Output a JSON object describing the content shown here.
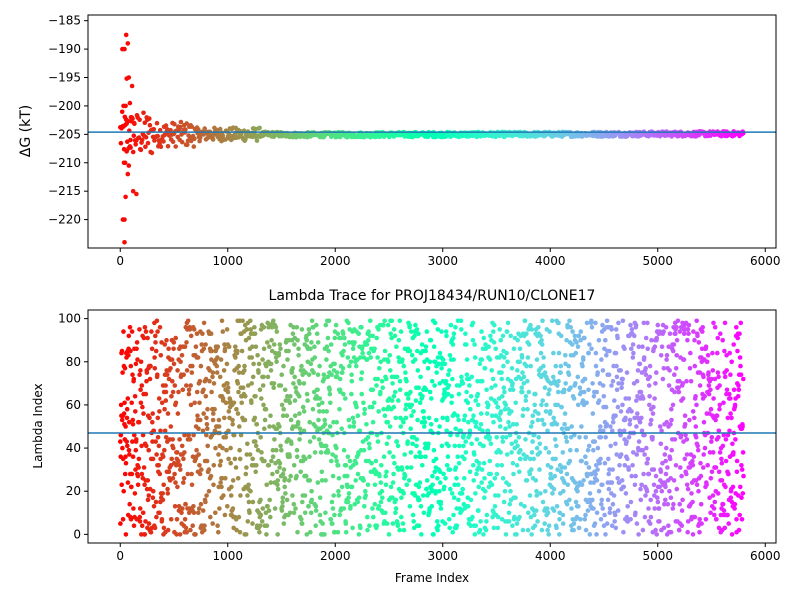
{
  "chart_data": [
    {
      "type": "scatter",
      "title": "",
      "xlabel": "",
      "ylabel": "ΔG (kT)",
      "xlim": [
        -300,
        6100
      ],
      "ylim": [
        -225,
        -184
      ],
      "xticks": [
        0,
        1000,
        2000,
        3000,
        4000,
        5000,
        6000
      ],
      "yticks": [
        -185,
        -190,
        -195,
        -200,
        -205,
        -210,
        -215,
        -220
      ],
      "xtick_labels": [
        "0",
        "1000",
        "2000",
        "3000",
        "4000",
        "5000",
        "6000"
      ],
      "ytick_labels": [
        "−185",
        "−190",
        "−195",
        "−200",
        "−205",
        "−210",
        "−215",
        "−220"
      ],
      "hline": -204.6,
      "hline_color": "#1f77b4",
      "colormap": "rainbow (red → violet with frame index)",
      "n_frames": 5800,
      "early_points": [
        {
          "x": 20,
          "y": -190
        },
        {
          "x": 40,
          "y": -190
        },
        {
          "x": 55,
          "y": -187.5
        },
        {
          "x": 70,
          "y": -189
        },
        {
          "x": 30,
          "y": -200
        },
        {
          "x": 50,
          "y": -200
        },
        {
          "x": 80,
          "y": -195
        },
        {
          "x": 60,
          "y": -195.2
        },
        {
          "x": 35,
          "y": -210
        },
        {
          "x": 45,
          "y": -210
        },
        {
          "x": 25,
          "y": -220
        },
        {
          "x": 40,
          "y": -220
        },
        {
          "x": 50,
          "y": -216
        },
        {
          "x": 40,
          "y": -224
        },
        {
          "x": 60,
          "y": -208
        },
        {
          "x": 70,
          "y": -212
        },
        {
          "x": 90,
          "y": -199.5
        },
        {
          "x": 100,
          "y": -202
        },
        {
          "x": 110,
          "y": -196.5
        },
        {
          "x": 120,
          "y": -215
        },
        {
          "x": 150,
          "y": -215.5
        },
        {
          "x": 80,
          "y": -210.5
        },
        {
          "x": 95,
          "y": -206
        },
        {
          "x": 130,
          "y": -203
        }
      ],
      "converged_band": {
        "center": -205,
        "spread_start": 3.0,
        "spread_end": 0.4
      }
    },
    {
      "type": "scatter",
      "title": "Lambda Trace for PROJ18434/RUN10/CLONE17",
      "xlabel": "Frame Index",
      "ylabel": "Lambda Index",
      "xlim": [
        -300,
        6100
      ],
      "ylim": [
        -4,
        104
      ],
      "xticks": [
        0,
        1000,
        2000,
        3000,
        4000,
        5000,
        6000
      ],
      "yticks": [
        0,
        20,
        40,
        60,
        80,
        100
      ],
      "xtick_labels": [
        "0",
        "1000",
        "2000",
        "3000",
        "4000",
        "5000",
        "6000"
      ],
      "ytick_labels": [
        "0",
        "20",
        "40",
        "60",
        "80",
        "100"
      ],
      "hline": 47,
      "hline_color": "#1f77b4",
      "colormap": "rainbow (red → violet with frame index)",
      "n_frames": 5800,
      "lambda_range": [
        0,
        99
      ]
    }
  ]
}
